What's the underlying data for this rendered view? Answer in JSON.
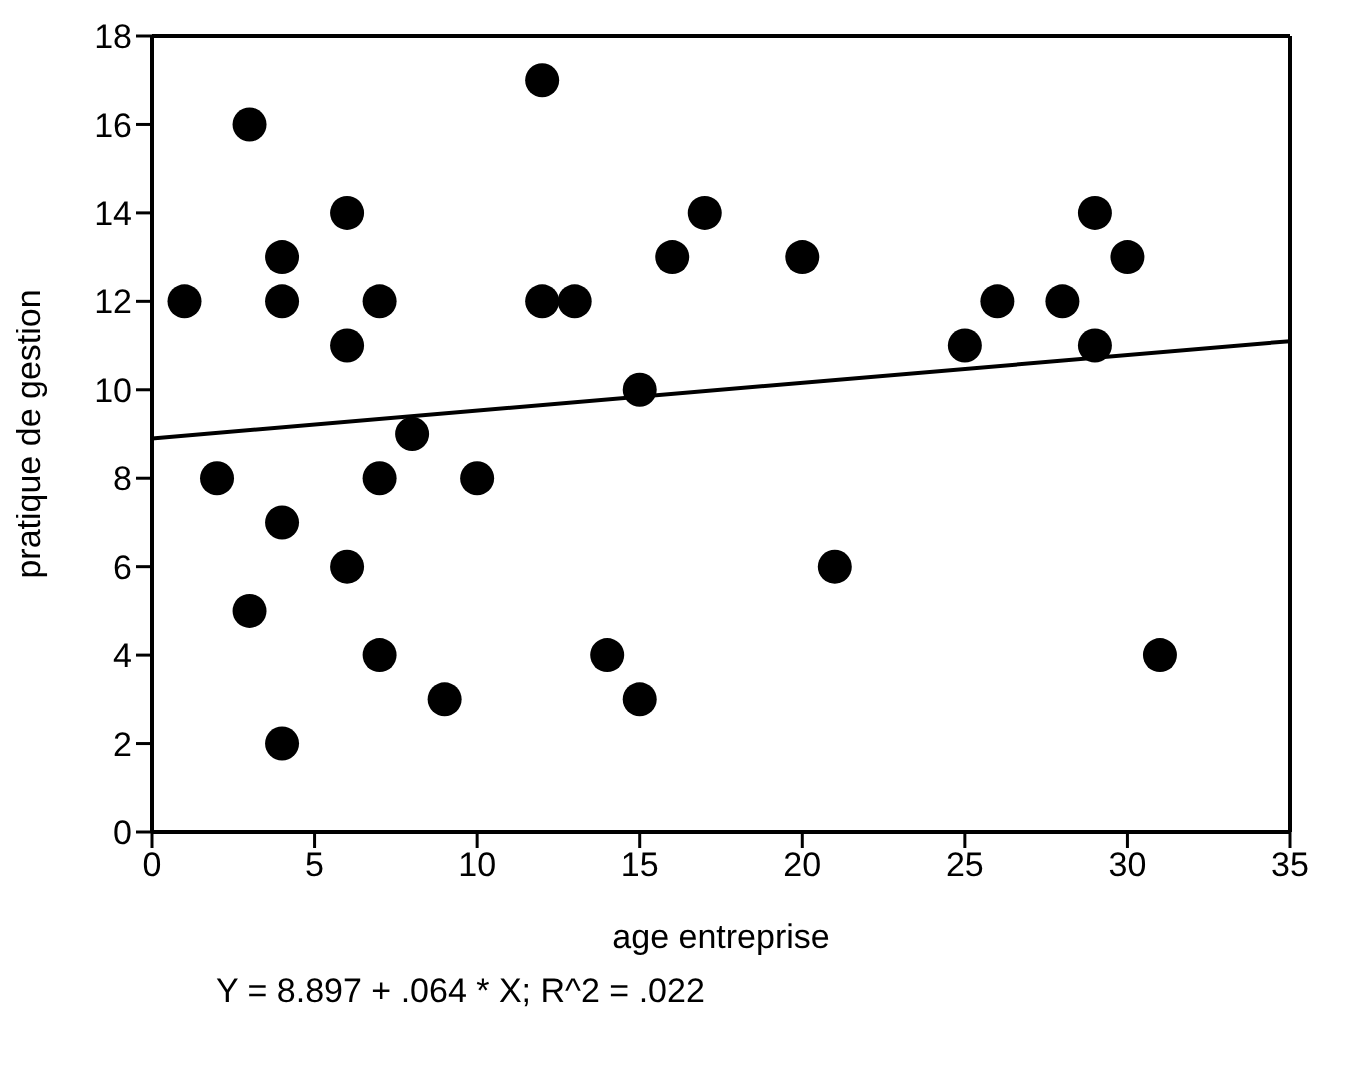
{
  "chart_data": {
    "type": "scatter",
    "xlabel": "age entreprise",
    "ylabel": "pratique de gestion",
    "xlim": [
      0,
      35
    ],
    "xticks": [
      0,
      5,
      10,
      15,
      20,
      25,
      30,
      35
    ],
    "ylim": [
      0,
      18
    ],
    "yticks": [
      0,
      2,
      4,
      6,
      8,
      10,
      12,
      14,
      16,
      18
    ],
    "marker": "circle",
    "series": [
      {
        "color": "#000000",
        "x": [
          1,
          2,
          3,
          3,
          4,
          4,
          4,
          4,
          6,
          6,
          6,
          7,
          7,
          7,
          8,
          9,
          10,
          12,
          12,
          13,
          14,
          15,
          15,
          16,
          17,
          20,
          21,
          25,
          26,
          28,
          29,
          29,
          30,
          31
        ],
        "values": [
          12,
          8,
          16,
          5,
          13,
          12,
          7,
          2,
          14,
          11,
          6,
          12,
          8,
          4,
          9,
          3,
          8,
          17,
          12,
          12,
          4,
          10,
          3,
          13,
          14,
          13,
          6,
          11,
          12,
          12,
          14,
          11,
          13,
          4
        ]
      },
      {
        "type": "line",
        "color": "#000000",
        "line_style": "solid",
        "marker": "none",
        "x": [
          0,
          35
        ],
        "values": [
          8.9,
          11.1
        ]
      }
    ],
    "annotations": [
      "Y = 8.897 + .064 * X; R^2 = .022"
    ]
  }
}
